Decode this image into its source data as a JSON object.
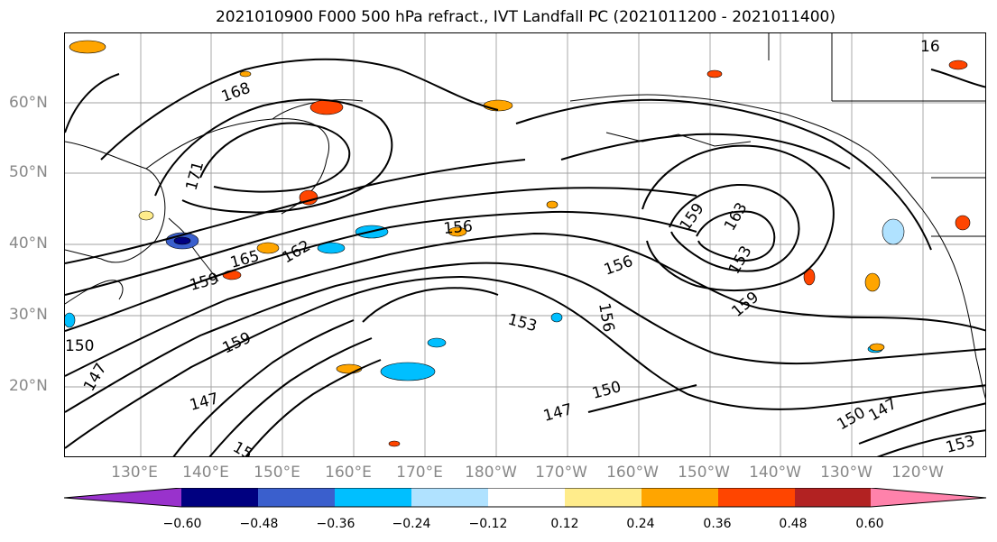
{
  "title": "2021010900 F000 500 hPa refract., IVT Landfall PC (2021011200 - 2021011400)",
  "lat_labels": [
    "60°N",
    "50°N",
    "40°N",
    "30°N",
    "20°N"
  ],
  "lon_labels": [
    "130°E",
    "140°E",
    "150°E",
    "160°E",
    "170°E",
    "180°W",
    "170°W",
    "160°W",
    "150°W",
    "140°W",
    "130°W",
    "120°W"
  ],
  "contour_labels": [
    "168",
    "171",
    "156",
    "159",
    "165",
    "162",
    "159",
    "156",
    "153",
    "153",
    "156",
    "159",
    "150",
    "147",
    "150",
    "147",
    "153",
    "150",
    "147",
    "15",
    "147",
    "159",
    "16",
    "163"
  ],
  "colorbar": {
    "colors": [
      "#9932cc",
      "#000080",
      "#3a5fcd",
      "#00bfff",
      "#b0e2ff",
      "#ffffff",
      "#ffec8b",
      "#ffa500",
      "#ff4500",
      "#b22222",
      "#ff82ab"
    ],
    "tick_labels": [
      "−0.60",
      "−0.48",
      "−0.36",
      "−0.24",
      "−0.12",
      "0.12",
      "0.24",
      "0.36",
      "0.48",
      "0.60"
    ]
  }
}
